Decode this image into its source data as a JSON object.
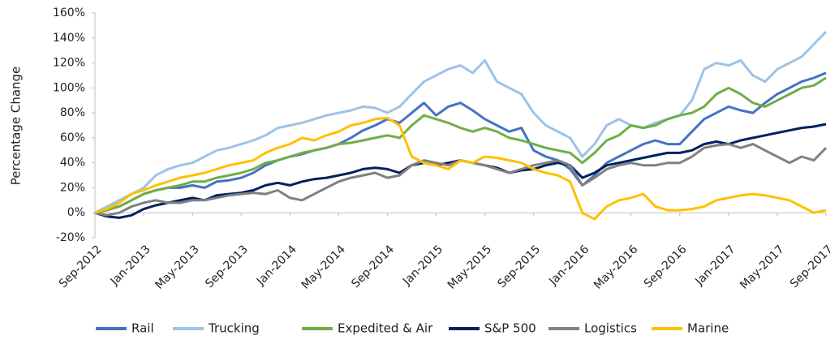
{
  "chart_data": {
    "type": "line",
    "y_label": "Percentage Change",
    "categories": [
      "Sep-2012",
      null,
      null,
      null,
      "Jan-2013",
      null,
      null,
      null,
      "May-2013",
      null,
      null,
      null,
      "Sep-2013",
      null,
      null,
      null,
      "Jan-2014",
      null,
      null,
      null,
      "May-2014",
      null,
      null,
      null,
      "Sep-2014",
      null,
      null,
      null,
      "Jan-2015",
      null,
      null,
      null,
      "May-2015",
      null,
      null,
      null,
      "Sep-2015",
      null,
      null,
      null,
      "Jan-2016",
      null,
      null,
      null,
      "May-2016",
      null,
      null,
      null,
      "Sep-2016",
      null,
      null,
      null,
      "Jan-2017",
      null,
      null,
      null,
      "May-2017",
      null,
      null,
      null,
      "Sep-2017"
    ],
    "ylim": [
      -20,
      160
    ],
    "yticks": [
      {
        "value": -20,
        "label": "-20%"
      },
      {
        "value": 0,
        "label": "0%"
      },
      {
        "value": 20,
        "label": "20%"
      },
      {
        "value": 40,
        "label": "40%"
      },
      {
        "value": 60,
        "label": "60%"
      },
      {
        "value": 80,
        "label": "80%"
      },
      {
        "value": 100,
        "label": "100%"
      },
      {
        "value": 120,
        "label": "120%"
      },
      {
        "value": 140,
        "label": "140%"
      },
      {
        "value": 160,
        "label": "160%"
      }
    ],
    "grid": false,
    "legend": "bottom",
    "series": [
      {
        "name": "Rail",
        "color": "#4472c4",
        "values": [
          0,
          3,
          5,
          10,
          15,
          18,
          20,
          20,
          22,
          20,
          25,
          26,
          28,
          32,
          38,
          42,
          45,
          47,
          50,
          52,
          55,
          60,
          66,
          70,
          75,
          72,
          80,
          88,
          78,
          85,
          88,
          82,
          75,
          70,
          65,
          68,
          50,
          45,
          42,
          35,
          22,
          30,
          40,
          45,
          50,
          55,
          58,
          55,
          55,
          65,
          75,
          80,
          85,
          82,
          80,
          88,
          95,
          100,
          105,
          108,
          112
        ]
      },
      {
        "name": "Trucking",
        "color": "#9dc3e6",
        "values": [
          0,
          5,
          10,
          15,
          20,
          30,
          35,
          38,
          40,
          45,
          50,
          52,
          55,
          58,
          62,
          68,
          70,
          72,
          75,
          78,
          80,
          82,
          85,
          84,
          80,
          85,
          95,
          105,
          110,
          115,
          118,
          112,
          122,
          105,
          100,
          95,
          80,
          70,
          65,
          60,
          45,
          55,
          70,
          75,
          70,
          68,
          72,
          75,
          78,
          90,
          115,
          120,
          118,
          122,
          110,
          105,
          115,
          120,
          125,
          135,
          145
        ]
      },
      {
        "name": "Expedited & Air",
        "color": "#70ad47",
        "values": [
          0,
          2,
          5,
          10,
          15,
          18,
          20,
          22,
          25,
          25,
          28,
          30,
          32,
          35,
          40,
          42,
          45,
          48,
          50,
          52,
          55,
          56,
          58,
          60,
          62,
          60,
          70,
          78,
          75,
          72,
          68,
          65,
          68,
          65,
          60,
          58,
          55,
          52,
          50,
          48,
          40,
          48,
          58,
          62,
          70,
          68,
          70,
          75,
          78,
          80,
          85,
          95,
          100,
          95,
          88,
          85,
          90,
          95,
          100,
          102,
          108
        ]
      },
      {
        "name": "S&P 500",
        "color": "#002060",
        "values": [
          0,
          -3,
          -4,
          -2,
          3,
          6,
          8,
          10,
          12,
          10,
          14,
          15,
          16,
          18,
          22,
          24,
          22,
          25,
          27,
          28,
          30,
          32,
          35,
          36,
          35,
          32,
          38,
          40,
          38,
          40,
          42,
          40,
          38,
          36,
          32,
          34,
          35,
          38,
          40,
          38,
          28,
          32,
          38,
          40,
          42,
          44,
          46,
          48,
          48,
          50,
          55,
          57,
          55,
          58,
          60,
          62,
          64,
          66,
          68,
          69,
          71
        ]
      },
      {
        "name": "Logistics",
        "color": "#808080",
        "values": [
          0,
          -2,
          0,
          5,
          8,
          10,
          8,
          8,
          10,
          10,
          12,
          14,
          15,
          16,
          15,
          18,
          12,
          10,
          15,
          20,
          25,
          28,
          30,
          32,
          28,
          30,
          38,
          42,
          40,
          38,
          42,
          40,
          38,
          35,
          32,
          35,
          38,
          40,
          42,
          38,
          22,
          28,
          35,
          38,
          40,
          38,
          38,
          40,
          40,
          45,
          52,
          54,
          55,
          52,
          55,
          50,
          45,
          40,
          45,
          42,
          52
        ]
      },
      {
        "name": "Marine",
        "color": "#ffc000",
        "values": [
          0,
          3,
          8,
          15,
          18,
          22,
          25,
          28,
          30,
          32,
          35,
          38,
          40,
          42,
          48,
          52,
          55,
          60,
          58,
          62,
          65,
          70,
          72,
          75,
          76,
          70,
          45,
          40,
          38,
          35,
          42,
          40,
          45,
          44,
          42,
          40,
          35,
          32,
          30,
          25,
          0,
          -5,
          5,
          10,
          12,
          15,
          5,
          2,
          2,
          3,
          5,
          10,
          12,
          14,
          15,
          14,
          12,
          10,
          5,
          0,
          2
        ]
      }
    ]
  }
}
